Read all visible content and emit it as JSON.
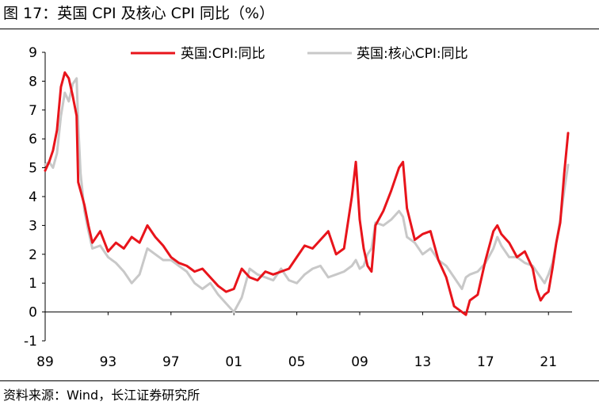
{
  "figure": {
    "title": "图 17：英国 CPI 及核心 CPI 同比（%）",
    "source": "资料来源：Wind，长江证券研究所"
  },
  "chart_data": {
    "type": "line",
    "title": "图 17：英国 CPI 及核心 CPI 同比（%）",
    "xlabel": "",
    "ylabel": "",
    "x_ticks": [
      "89",
      "93",
      "97",
      "01",
      "05",
      "09",
      "13",
      "17",
      "21"
    ],
    "x_range": [
      1989.0,
      2022.5
    ],
    "y_ticks": [
      -1,
      0,
      1,
      2,
      3,
      4,
      5,
      6,
      7,
      8,
      9
    ],
    "ylim": [
      -1,
      9
    ],
    "grid": false,
    "legend": "top",
    "series": [
      {
        "name": "英国:CPI:同比",
        "color": "#e8141b",
        "x": [
          1989.0,
          1989.25,
          1989.5,
          1989.75,
          1990.0,
          1990.25,
          1990.5,
          1990.75,
          1991.0,
          1991.1,
          1991.25,
          1991.5,
          1991.75,
          1992.0,
          1992.5,
          1993.0,
          1993.5,
          1994.0,
          1994.5,
          1995.0,
          1995.5,
          1996.0,
          1996.5,
          1997.0,
          1997.5,
          1998.0,
          1998.5,
          1999.0,
          1999.5,
          2000.0,
          2000.5,
          2001.0,
          2001.5,
          2002.0,
          2002.5,
          2003.0,
          2003.5,
          2004.0,
          2004.5,
          2005.0,
          2005.5,
          2006.0,
          2006.5,
          2007.0,
          2007.5,
          2008.0,
          2008.5,
          2008.75,
          2009.0,
          2009.25,
          2009.5,
          2009.75,
          2010.0,
          2010.5,
          2011.0,
          2011.5,
          2011.75,
          2012.0,
          2012.5,
          2013.0,
          2013.5,
          2014.0,
          2014.5,
          2015.0,
          2015.5,
          2015.75,
          2016.0,
          2016.5,
          2017.0,
          2017.5,
          2017.75,
          2018.0,
          2018.5,
          2019.0,
          2019.5,
          2020.0,
          2020.25,
          2020.5,
          2020.75,
          2021.0,
          2021.25,
          2021.5,
          2021.75,
          2022.0,
          2022.25
        ],
        "values": [
          4.9,
          5.2,
          5.6,
          6.3,
          7.8,
          8.3,
          8.1,
          7.5,
          6.8,
          4.5,
          4.2,
          3.7,
          3.0,
          2.4,
          2.8,
          2.1,
          2.4,
          2.2,
          2.6,
          2.4,
          3.0,
          2.6,
          2.3,
          1.9,
          1.7,
          1.6,
          1.4,
          1.5,
          1.2,
          0.9,
          0.7,
          0.8,
          1.5,
          1.2,
          1.1,
          1.4,
          1.3,
          1.4,
          1.5,
          1.9,
          2.3,
          2.2,
          2.5,
          2.8,
          2.0,
          2.2,
          4.0,
          5.2,
          3.2,
          2.2,
          1.6,
          1.4,
          3.0,
          3.5,
          4.2,
          5.0,
          5.2,
          3.6,
          2.5,
          2.7,
          2.8,
          1.8,
          1.2,
          0.2,
          0.0,
          -0.1,
          0.4,
          0.6,
          1.8,
          2.8,
          3.0,
          2.7,
          2.4,
          1.9,
          2.1,
          1.5,
          0.8,
          0.4,
          0.6,
          0.7,
          1.5,
          2.4,
          3.1,
          4.8,
          6.2
        ]
      },
      {
        "name": "英国:核心CPI:同比",
        "color": "#c8c8c8",
        "x": [
          1989.0,
          1989.25,
          1989.5,
          1989.75,
          1990.0,
          1990.25,
          1990.5,
          1990.75,
          1991.0,
          1991.1,
          1991.25,
          1991.5,
          1991.75,
          1992.0,
          1992.5,
          1993.0,
          1993.5,
          1994.0,
          1994.5,
          1995.0,
          1995.5,
          1996.0,
          1996.5,
          1997.0,
          1997.5,
          1998.0,
          1998.5,
          1999.0,
          1999.5,
          2000.0,
          2000.5,
          2001.0,
          2001.5,
          2002.0,
          2002.5,
          2003.0,
          2003.5,
          2004.0,
          2004.5,
          2005.0,
          2005.5,
          2006.0,
          2006.5,
          2007.0,
          2007.5,
          2008.0,
          2008.5,
          2008.75,
          2009.0,
          2009.25,
          2009.5,
          2009.75,
          2010.0,
          2010.5,
          2011.0,
          2011.5,
          2011.75,
          2012.0,
          2012.5,
          2013.0,
          2013.5,
          2014.0,
          2014.5,
          2015.0,
          2015.5,
          2015.75,
          2016.0,
          2016.5,
          2017.0,
          2017.5,
          2017.75,
          2018.0,
          2018.5,
          2019.0,
          2019.5,
          2020.0,
          2020.25,
          2020.5,
          2020.75,
          2021.0,
          2021.25,
          2021.5,
          2021.75,
          2022.0,
          2022.25
        ],
        "values": [
          5.1,
          5.2,
          5.0,
          5.5,
          6.8,
          7.6,
          7.3,
          7.9,
          8.1,
          6.5,
          4.8,
          3.5,
          2.8,
          2.2,
          2.3,
          1.9,
          1.7,
          1.4,
          1.0,
          1.3,
          2.2,
          2.0,
          1.8,
          1.8,
          1.6,
          1.4,
          1.0,
          0.8,
          1.0,
          0.6,
          0.3,
          0.0,
          0.5,
          1.5,
          1.3,
          1.2,
          1.1,
          1.5,
          1.1,
          1.0,
          1.3,
          1.5,
          1.6,
          1.2,
          1.3,
          1.4,
          1.6,
          1.8,
          1.5,
          1.6,
          2.0,
          2.2,
          3.1,
          3.0,
          3.2,
          3.5,
          3.3,
          2.6,
          2.4,
          2.0,
          2.2,
          1.8,
          1.6,
          1.2,
          0.8,
          1.2,
          1.3,
          1.4,
          1.7,
          2.2,
          2.6,
          2.3,
          1.9,
          1.9,
          1.7,
          1.6,
          1.4,
          1.2,
          1.0,
          1.3,
          1.7,
          2.4,
          3.2,
          4.2,
          5.1
        ]
      }
    ]
  }
}
